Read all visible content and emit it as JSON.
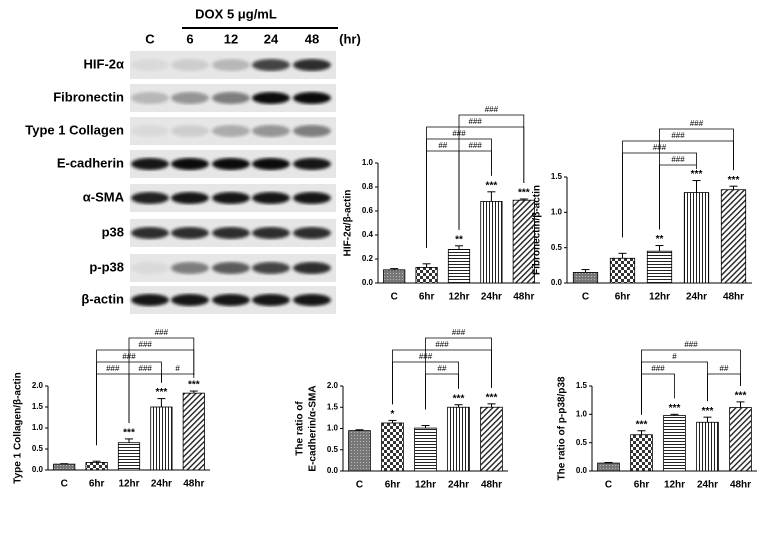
{
  "blot": {
    "treatment": "DOX 5 μg/mL",
    "lanes": [
      "C",
      "6",
      "12",
      "24",
      "48",
      "(hr)"
    ],
    "rows": [
      "HIF-2α",
      "Fibronectin",
      "Type 1 Collagen",
      "E-cadherin",
      "α-SMA",
      "p38",
      "p-p38",
      "β-actin"
    ]
  },
  "chart_data": [
    {
      "type": "bar",
      "ylabel": "HIF-2α/β-actin",
      "categories": [
        "C",
        "6hr",
        "12hr",
        "24hr",
        "48hr"
      ],
      "values": [
        0.11,
        0.13,
        0.28,
        0.68,
        0.69
      ],
      "errors": [
        0.01,
        0.03,
        0.03,
        0.08,
        0.01
      ],
      "significance": [
        null,
        null,
        "**",
        "***",
        "***"
      ],
      "comparisons": [
        {
          "from": "6hr",
          "to": "12hr",
          "label": "##"
        },
        {
          "from": "12hr",
          "to": "24hr",
          "label": "###"
        },
        {
          "from": "6hr",
          "to": "24hr",
          "label": "###"
        },
        {
          "from": "6hr",
          "to": "48hr",
          "label": "###"
        },
        {
          "from": "12hr",
          "to": "48hr",
          "label": "###"
        }
      ],
      "ylim": [
        0,
        1.0
      ],
      "yticks": [
        {
          "value": 0,
          "label": "0.0"
        },
        0.2,
        0.4,
        0.6,
        0.8,
        {
          "value": 1,
          "label": "1.0"
        }
      ]
    },
    {
      "type": "bar",
      "ylabel": "Fibronectin/β-actin",
      "categories": [
        "C",
        "6hr",
        "12hr",
        "24hr",
        "48hr"
      ],
      "values": [
        0.15,
        0.35,
        0.45,
        1.28,
        1.32
      ],
      "errors": [
        0.04,
        0.07,
        0.08,
        0.17,
        0.05
      ],
      "significance": [
        null,
        null,
        "**",
        "***",
        "***"
      ],
      "comparisons": [
        {
          "from": "12hr",
          "to": "24hr",
          "label": "###"
        },
        {
          "from": "6hr",
          "to": "24hr",
          "label": "###"
        },
        {
          "from": "6hr",
          "to": "48hr",
          "label": "###"
        },
        {
          "from": "12hr",
          "to": "48hr",
          "label": "###"
        }
      ],
      "ylim": [
        0,
        1.5
      ],
      "yticks": [
        {
          "value": 0,
          "label": "0.0"
        },
        0.5,
        {
          "value": 1,
          "label": "1.0"
        },
        1.5
      ]
    },
    {
      "type": "bar",
      "ylabel": "Type 1 Collagen/β-actin",
      "categories": [
        "C",
        "6hr",
        "12hr",
        "24hr",
        "48hr"
      ],
      "values": [
        0.14,
        0.18,
        0.65,
        1.5,
        1.83
      ],
      "errors": [
        0.01,
        0.03,
        0.09,
        0.2,
        0.05
      ],
      "significance": [
        null,
        null,
        "***",
        "***",
        "***"
      ],
      "comparisons": [
        {
          "from": "6hr",
          "to": "12hr",
          "label": "###"
        },
        {
          "from": "12hr",
          "to": "24hr",
          "label": "###"
        },
        {
          "from": "24hr",
          "to": "48hr",
          "label": "#"
        },
        {
          "from": "6hr",
          "to": "24hr",
          "label": "###"
        },
        {
          "from": "6hr",
          "to": "48hr",
          "label": "###"
        },
        {
          "from": "12hr",
          "to": "48hr",
          "label": "###"
        }
      ],
      "ylim": [
        0,
        2.0
      ],
      "yticks": [
        {
          "value": 0,
          "label": "0.0"
        },
        0.5,
        {
          "value": 1,
          "label": "1.0"
        },
        1.5,
        {
          "value": 2,
          "label": "2.0"
        }
      ]
    },
    {
      "type": "bar",
      "ylabel": [
        "The ratio of",
        "E-cadherin/α-SMA"
      ],
      "categories": [
        "C",
        "6hr",
        "12hr",
        "24hr",
        "48hr"
      ],
      "values": [
        0.95,
        1.13,
        1.01,
        1.5,
        1.5
      ],
      "errors": [
        0.02,
        0.06,
        0.06,
        0.06,
        0.08
      ],
      "significance": [
        null,
        "*",
        null,
        "***",
        "***"
      ],
      "comparisons": [
        {
          "from": "12hr",
          "to": "24hr",
          "label": "##"
        },
        {
          "from": "6hr",
          "to": "24hr",
          "label": "###"
        },
        {
          "from": "6hr",
          "to": "48hr",
          "label": "###"
        },
        {
          "from": "12hr",
          "to": "48hr",
          "label": "###"
        }
      ],
      "ylim": [
        0,
        2.0
      ],
      "yticks": [
        {
          "value": 0,
          "label": "0.0"
        },
        0.5,
        {
          "value": 1,
          "label": "1.0"
        },
        1.5,
        {
          "value": 2,
          "label": "2.0"
        }
      ]
    },
    {
      "type": "bar",
      "ylabel": "The ratio of p-p38/p38",
      "categories": [
        "C",
        "6hr",
        "12hr",
        "24hr",
        "48hr"
      ],
      "values": [
        0.14,
        0.64,
        0.98,
        0.86,
        1.12
      ],
      "errors": [
        0.01,
        0.07,
        0.02,
        0.09,
        0.1
      ],
      "significance": [
        null,
        "***",
        "***",
        "***",
        "***"
      ],
      "comparisons": [
        {
          "from": "6hr",
          "to": "12hr",
          "label": "###"
        },
        {
          "from": "24hr",
          "to": "48hr",
          "label": "##"
        },
        {
          "from": "6hr",
          "to": "24hr",
          "label": "#"
        },
        {
          "from": "6hr",
          "to": "48hr",
          "label": "###"
        }
      ],
      "ylim": [
        0,
        1.5
      ],
      "yticks": [
        {
          "value": 0,
          "label": "0.0"
        },
        0.5,
        {
          "value": 1,
          "label": "1.0"
        },
        1.5
      ]
    }
  ]
}
